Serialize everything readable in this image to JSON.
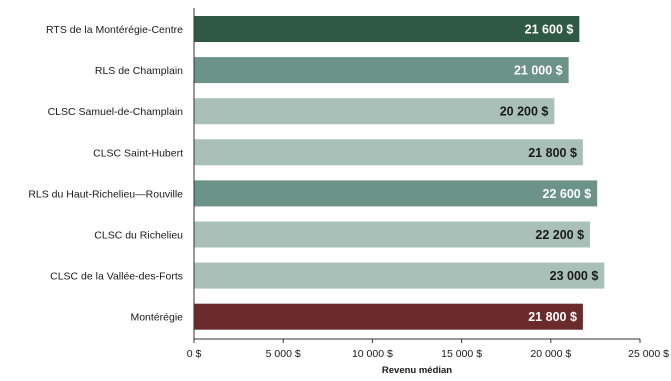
{
  "chart_data": {
    "type": "bar",
    "orientation": "horizontal",
    "categories": [
      "RTS de la Montérégie-Centre",
      "RLS de Champlain",
      "CLSC Samuel-de-Champlain",
      "CLSC Saint-Hubert",
      "RLS du Haut-Richelieu—Rouville",
      "CLSC du Richelieu",
      "CLSC de la Vallée-des-Forts",
      "Montérégie"
    ],
    "values": [
      21600,
      21000,
      20200,
      21800,
      22600,
      22200,
      23000,
      21800
    ],
    "value_labels": [
      "21 600 $",
      "21 000 $",
      "20 200 $",
      "21 800 $",
      "22 600 $",
      "22 200 $",
      "23 000 $",
      "21 800 $"
    ],
    "bar_colors": [
      "#2e5a43",
      "#6c9388",
      "#a9c0b8",
      "#a9c0b8",
      "#6c9388",
      "#a9c0b8",
      "#a9c0b8",
      "#6b2a2c"
    ],
    "value_label_colors": [
      "#ffffff",
      "#ffffff",
      "#1a1a1a",
      "#1a1a1a",
      "#ffffff",
      "#1a1a1a",
      "#1a1a1a",
      "#ffffff"
    ],
    "xlabel": "Revenu médian",
    "xlim": [
      0,
      25000
    ],
    "xticks": [
      0,
      5000,
      10000,
      15000,
      20000,
      25000
    ],
    "xtick_labels": [
      "0 $",
      "5 000 $",
      "10 000 $",
      "15 000 $",
      "20 000 $",
      "25 000 $"
    ],
    "grid": false
  }
}
